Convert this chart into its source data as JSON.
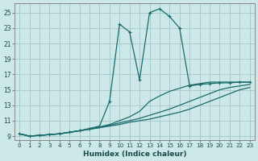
{
  "xlabel": "Humidex (Indice chaleur)",
  "background_color": "#cce8e8",
  "grid_color": "#aacaca",
  "line_color": "#1a6b6b",
  "xlim": [
    -0.5,
    23.5
  ],
  "ylim": [
    8.5,
    26.2
  ],
  "xticks": [
    0,
    1,
    2,
    3,
    4,
    5,
    6,
    7,
    8,
    9,
    10,
    11,
    12,
    13,
    14,
    15,
    16,
    17,
    18,
    19,
    20,
    21,
    22,
    23
  ],
  "yticks": [
    9,
    11,
    13,
    15,
    17,
    19,
    21,
    23,
    25
  ],
  "series": {
    "main": [
      9.3,
      9.0,
      9.1,
      9.2,
      9.3,
      9.5,
      9.7,
      10.0,
      10.3,
      13.5,
      23.5,
      22.5,
      16.3,
      25.0,
      25.5,
      24.5,
      23.0,
      15.5,
      15.7,
      15.8,
      15.9,
      15.9,
      16.0,
      16.0
    ],
    "trend1": [
      9.3,
      9.0,
      9.1,
      9.2,
      9.3,
      9.5,
      9.7,
      9.9,
      10.2,
      10.5,
      11.0,
      11.5,
      12.2,
      13.5,
      14.2,
      14.8,
      15.2,
      15.6,
      15.8,
      16.0,
      16.0,
      16.0,
      16.0,
      16.0
    ],
    "trend2": [
      9.3,
      9.0,
      9.1,
      9.2,
      9.3,
      9.5,
      9.7,
      9.9,
      10.1,
      10.4,
      10.7,
      11.0,
      11.3,
      11.7,
      12.1,
      12.5,
      13.0,
      13.5,
      14.0,
      14.5,
      15.0,
      15.3,
      15.5,
      15.7
    ],
    "trend3": [
      9.3,
      9.0,
      9.1,
      9.2,
      9.3,
      9.5,
      9.7,
      9.9,
      10.1,
      10.3,
      10.5,
      10.8,
      11.0,
      11.2,
      11.5,
      11.8,
      12.1,
      12.5,
      13.0,
      13.5,
      14.0,
      14.5,
      15.0,
      15.3
    ]
  }
}
